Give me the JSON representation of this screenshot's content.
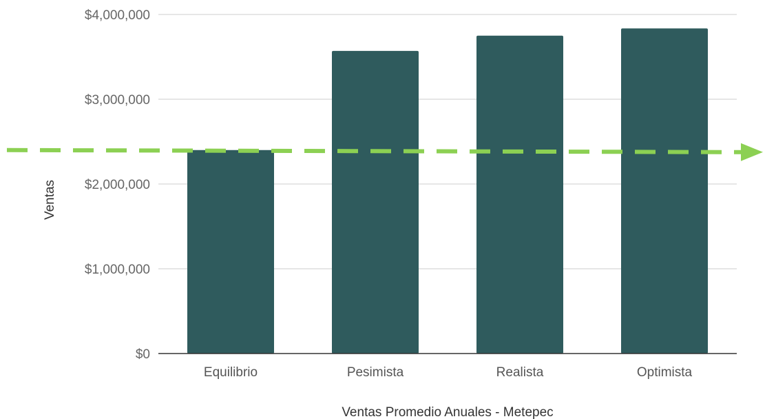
{
  "chart_data": {
    "type": "bar",
    "categories": [
      "Equilibrio",
      "Pesimista",
      "Realista",
      "Optimista"
    ],
    "values": [
      2400000,
      3570000,
      3750000,
      3835000
    ],
    "title": "",
    "xlabel": "Ventas Promedio Anuales - Metepec",
    "ylabel": "Ventas",
    "ylim": [
      0,
      4000000
    ],
    "yticks": [
      0,
      1000000,
      2000000,
      3000000,
      4000000
    ],
    "ytick_labels": [
      "$0",
      "$1,000,000",
      "$2,000,000",
      "$3,000,000",
      "$4,000,000"
    ],
    "grid": true,
    "bar_color": "#2f5b5d",
    "reference_line": {
      "value": 2400000,
      "style": "dashed-arrow",
      "color": "#8cd053"
    }
  }
}
